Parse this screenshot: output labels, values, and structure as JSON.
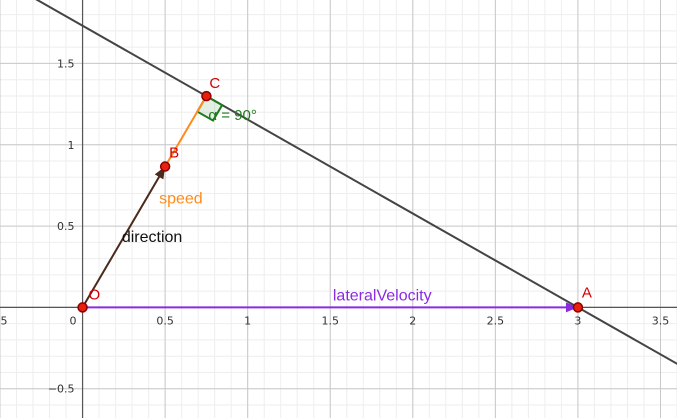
{
  "colors": {
    "grid_minor": "#eeeeee",
    "grid_major": "#c8c8c8",
    "axis": "#555555",
    "line": "#444444",
    "direction": "#4a2a1a",
    "speed": "#ff8c1a",
    "lateral": "#8a2be2",
    "angle": "#1e7a1e",
    "point_fill": "#e8200e",
    "point_stroke": "#8b0000",
    "point_label": "#d00000"
  },
  "axes": {
    "xlim": [
      -0.5,
      3.6
    ],
    "ylim": [
      -0.68,
      1.89
    ],
    "x_ticks": [
      {
        "value": 0.5,
        "label": "0.5"
      },
      {
        "value": 1,
        "label": "1"
      },
      {
        "value": 1.5,
        "label": "1.5"
      },
      {
        "value": 2,
        "label": "2"
      },
      {
        "value": 2.5,
        "label": "2.5"
      },
      {
        "value": 3,
        "label": "3"
      },
      {
        "value": 3.5,
        "label": "3.5"
      }
    ],
    "x_edge_label": {
      "value": -0.5,
      "label": "5"
    },
    "y_ticks": [
      {
        "value": 1.5,
        "label": "1.5"
      },
      {
        "value": 1,
        "label": "1"
      },
      {
        "value": 0.5,
        "label": "0.5"
      },
      {
        "value": -0.5,
        "label": "−0.5"
      }
    ],
    "origin_label": "0",
    "minor_step": 0.1,
    "major_step": 0.5
  },
  "points": [
    {
      "id": "O",
      "name": "O",
      "x": 0,
      "y": 0
    },
    {
      "id": "B",
      "name": "B",
      "x": 0.5,
      "y": 0.866
    },
    {
      "id": "C",
      "name": "C",
      "x": 0.75,
      "y": 1.299
    },
    {
      "id": "A",
      "name": "A",
      "x": 3,
      "y": 0
    }
  ],
  "line_through": {
    "from": "C",
    "to": "A"
  },
  "vectors": {
    "direction": {
      "label": "direction",
      "from": "O",
      "to": "B"
    },
    "lateral": {
      "label": "lateralVelocity",
      "from": "O",
      "to": "A"
    }
  },
  "segment": {
    "label": "speed",
    "from": "B",
    "to": "C"
  },
  "angle": {
    "label": "α = 90°",
    "vertex": "C"
  }
}
